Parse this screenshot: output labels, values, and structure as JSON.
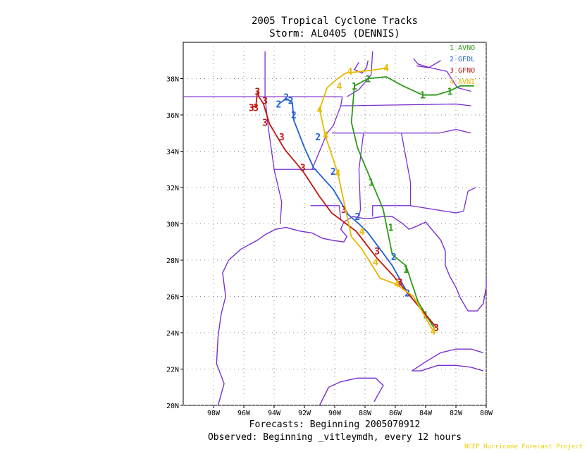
{
  "title_line1": "2005 Tropical Cyclone Tracks",
  "title_line2": "Storm: AL0405 (DENNIS)",
  "footer_line1": "Forecasts: Beginning 2005070912",
  "footer_line2": "Observed: Beginning _vitleymdh, every 12 hours",
  "credit": "NCEP Hurricane Forecast Project",
  "chart_data": {
    "type": "map",
    "lon_range": [
      -100,
      -80
    ],
    "lat_range": [
      20,
      40
    ],
    "x_ticks": [
      "98W",
      "96W",
      "94W",
      "92W",
      "90W",
      "88W",
      "86W",
      "84W",
      "82W",
      "80W"
    ],
    "y_ticks": [
      "20N",
      "22N",
      "24N",
      "26N",
      "28N",
      "30N",
      "32N",
      "34N",
      "36N",
      "38N"
    ],
    "grid": true,
    "legend_placement": "top-right",
    "series": [
      {
        "id": "1",
        "name": "AVNO",
        "color": "#2e9a1a",
        "points": [
          [
            -83.4,
            24.2
          ],
          [
            -84.5,
            25.7
          ],
          [
            -85.3,
            27.7
          ],
          [
            -86.2,
            28.3
          ],
          [
            -86.8,
            30.8
          ],
          [
            -87.5,
            32.2
          ],
          [
            -88.5,
            34.2
          ],
          [
            -88.9,
            35.6
          ],
          [
            -88.7,
            37.6
          ],
          [
            -87.8,
            38.0
          ],
          [
            -86.6,
            38.1
          ],
          [
            -85.5,
            37.6
          ],
          [
            -84.2,
            37.1
          ],
          [
            -83.3,
            37.1
          ],
          [
            -82.5,
            37.3
          ],
          [
            -81.7,
            37.6
          ],
          [
            -80.8,
            37.6
          ]
        ],
        "markers": [
          [
            -84.0,
            25.0
          ],
          [
            -85.3,
            27.5
          ],
          [
            -86.3,
            29.8
          ],
          [
            -87.6,
            32.3
          ],
          [
            -88.7,
            37.6
          ],
          [
            -87.8,
            38.0
          ],
          [
            -84.2,
            37.1
          ],
          [
            -82.4,
            37.3
          ]
        ]
      },
      {
        "id": "2",
        "name": "GFDL",
        "color": "#1f5fd6",
        "points": [
          [
            -83.3,
            24.3
          ],
          [
            -85.2,
            26.2
          ],
          [
            -86.2,
            27.7
          ],
          [
            -87.8,
            29.5
          ],
          [
            -88.4,
            30.0
          ],
          [
            -89.1,
            30.5
          ],
          [
            -90.1,
            31.9
          ],
          [
            -91.4,
            33.1
          ],
          [
            -92.0,
            34.2
          ],
          [
            -92.7,
            35.7
          ],
          [
            -92.8,
            36.7
          ],
          [
            -93.2,
            36.9
          ],
          [
            -93.7,
            36.6
          ]
        ],
        "markers": [
          [
            -85.2,
            26.2
          ],
          [
            -86.1,
            28.2
          ],
          [
            -88.5,
            30.4
          ],
          [
            -90.1,
            32.9
          ],
          [
            -91.1,
            34.8
          ],
          [
            -92.7,
            36.0
          ],
          [
            -92.9,
            36.8
          ],
          [
            -93.2,
            37.0
          ],
          [
            -93.7,
            36.6
          ]
        ]
      },
      {
        "id": "3",
        "name": "GFNO",
        "color": "#c0180e",
        "points": [
          [
            -83.3,
            24.3
          ],
          [
            -84.9,
            25.9
          ],
          [
            -86.2,
            27.2
          ],
          [
            -87.2,
            28.1
          ],
          [
            -88.6,
            29.6
          ],
          [
            -89.4,
            30.1
          ],
          [
            -90.2,
            30.6
          ],
          [
            -91.0,
            31.5
          ],
          [
            -92.1,
            32.9
          ],
          [
            -93.3,
            34.1
          ],
          [
            -94.3,
            35.5
          ],
          [
            -94.7,
            36.6
          ],
          [
            -95.0,
            37.0
          ],
          [
            -95.1,
            37.3
          ],
          [
            -95.2,
            36.5
          ],
          [
            -95.5,
            36.4
          ]
        ],
        "markers": [
          [
            -83.3,
            24.3
          ],
          [
            -85.7,
            26.8
          ],
          [
            -87.2,
            28.5
          ],
          [
            -89.4,
            30.8
          ],
          [
            -92.1,
            33.1
          ],
          [
            -93.5,
            34.8
          ],
          [
            -94.6,
            35.6
          ],
          [
            -94.6,
            36.8
          ],
          [
            -95.1,
            37.3
          ],
          [
            -95.2,
            36.4
          ],
          [
            -95.5,
            36.4
          ]
        ]
      },
      {
        "id": "4",
        "name": "AVNI",
        "color": "#e8b800",
        "points": [
          [
            -83.5,
            24.1
          ],
          [
            -84.8,
            26.0
          ],
          [
            -86.0,
            26.7
          ],
          [
            -87.0,
            27.0
          ],
          [
            -88.2,
            28.6
          ],
          [
            -88.9,
            29.3
          ],
          [
            -89.8,
            32.8
          ],
          [
            -90.6,
            34.8
          ],
          [
            -91.0,
            36.3
          ],
          [
            -90.5,
            37.5
          ],
          [
            -89.8,
            38.0
          ],
          [
            -89.3,
            38.3
          ],
          [
            -88.2,
            38.4
          ],
          [
            -87.2,
            38.5
          ],
          [
            -86.5,
            38.6
          ]
        ],
        "markers": [
          [
            -83.5,
            24.1
          ],
          [
            -85.9,
            26.7
          ],
          [
            -87.3,
            27.9
          ],
          [
            -88.2,
            29.6
          ],
          [
            -89.8,
            32.8
          ],
          [
            -90.6,
            34.9
          ],
          [
            -91.0,
            36.3
          ],
          [
            -89.7,
            37.6
          ],
          [
            -89.0,
            38.4
          ],
          [
            -86.6,
            38.6
          ]
        ]
      }
    ]
  },
  "map_overlay": {
    "coastline_color": "#7a2fd0",
    "country_lines_color": "#7a2fd0"
  }
}
